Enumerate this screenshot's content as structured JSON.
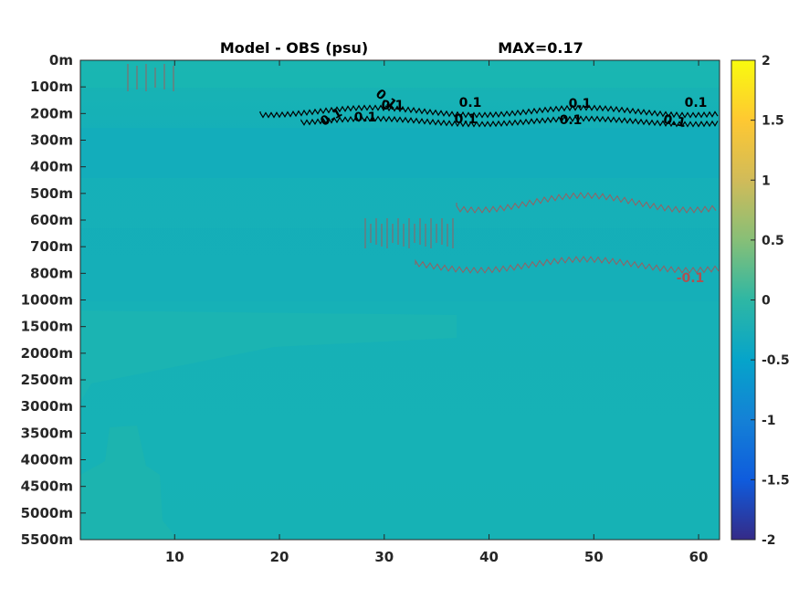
{
  "chart_data": {
    "type": "heatmap",
    "title": "Model - OBS (psu)",
    "max_label": "MAX=0.17",
    "x_ticks": [
      10,
      20,
      30,
      40,
      50,
      60
    ],
    "xlim": [
      1,
      62
    ],
    "y_tick_labels": [
      "0m",
      "100m",
      "200m",
      "300m",
      "400m",
      "500m",
      "600m",
      "700m",
      "800m",
      "1000m",
      "1500m",
      "2000m",
      "2500m",
      "3000m",
      "3500m",
      "4000m",
      "4500m",
      "5000m",
      "5500m"
    ],
    "colorbar": {
      "ticks": [
        2,
        1.5,
        1,
        0.5,
        0,
        -0.5,
        -1,
        -1.5,
        -2
      ],
      "labels": [
        "2",
        "1.5",
        "1",
        "0.5",
        "0",
        "-0.5",
        "-1",
        "-1.5",
        "-2"
      ],
      "range": [
        -2,
        2
      ],
      "colormap": "parula"
    },
    "contours": [
      {
        "level": 0.1,
        "color": "#000000",
        "labels": [
          "0.1",
          "0.1",
          "0.1",
          "0.1",
          "0.1",
          "0.1",
          "0.1",
          "0.1",
          "0.1",
          "0.1"
        ]
      },
      {
        "level": -0.1,
        "color": "#b05050",
        "labels": [
          "-0.1"
        ]
      }
    ]
  },
  "colors": {
    "background_field": "#17b0b8",
    "shallow_field": "#1bb6b0",
    "positive_contour": "#000000",
    "negative_contour": "#b05050"
  }
}
